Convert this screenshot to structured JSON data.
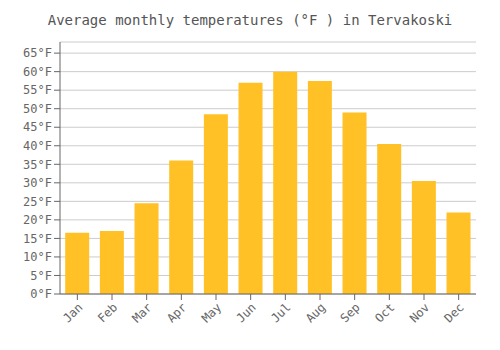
{
  "chart_data": {
    "type": "bar",
    "title": "Average monthly temperatures (°F ) in Tervakoski",
    "categories": [
      "Jan",
      "Feb",
      "Mar",
      "Apr",
      "May",
      "Jun",
      "Jul",
      "Aug",
      "Sep",
      "Oct",
      "Nov",
      "Dec"
    ],
    "values": [
      16.5,
      17.0,
      24.5,
      36.0,
      48.5,
      57.0,
      60.0,
      57.5,
      49.0,
      40.5,
      30.5,
      22.0
    ],
    "color": "#FFC125",
    "ylim": [
      0,
      68
    ],
    "yticks": [
      {
        "value": 0,
        "label": "0°F"
      },
      {
        "value": 5,
        "label": "5°F"
      },
      {
        "value": 10,
        "label": "10°F"
      },
      {
        "value": 15,
        "label": "15°F"
      },
      {
        "value": 20,
        "label": "20°F"
      },
      {
        "value": 25,
        "label": "25°F"
      },
      {
        "value": 30,
        "label": "30°F"
      },
      {
        "value": 35,
        "label": "35°F"
      },
      {
        "value": 40,
        "label": "40°F"
      },
      {
        "value": 45,
        "label": "45°F"
      },
      {
        "value": 50,
        "label": "50°F"
      },
      {
        "value": 55,
        "label": "55°F"
      },
      {
        "value": 60,
        "label": "60°F"
      },
      {
        "value": 65,
        "label": "65°F"
      }
    ],
    "grid": true
  }
}
